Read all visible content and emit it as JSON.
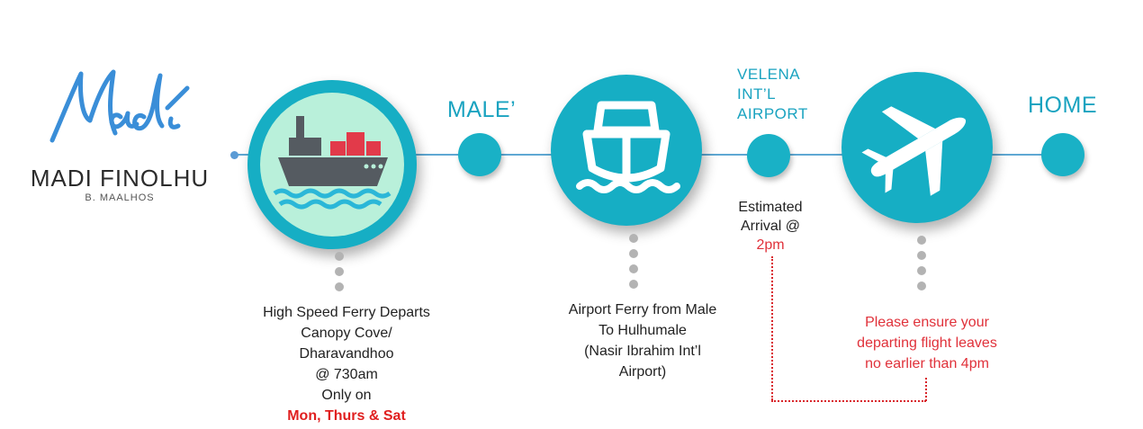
{
  "logo": {
    "script_text": "Madi",
    "name": "MADI FINOLHU",
    "subtitle": "B. MAALHOS"
  },
  "stops": {
    "male": "MALE’",
    "velena_line1": "VELENA",
    "velena_line2": "INT’L",
    "velena_line3": "AIRPORT",
    "home": "HOME"
  },
  "icons": {
    "ferry": "cargo-ship-icon",
    "airport_ferry": "boat-front-icon",
    "flight": "airplane-icon"
  },
  "steps": {
    "ferry": {
      "line1": "High Speed Ferry Departs",
      "line2": "Canopy Cove/",
      "line3": "Dharavandhoo",
      "line4": "@ 730am",
      "line5": "Only on",
      "days": "Mon, Thurs & Sat"
    },
    "airport_ferry": {
      "line1": "Airport Ferry from Male",
      "line2": "To Hulhumale",
      "line3": "(Nasir Ibrahim Int’l",
      "line4": "Airport)"
    },
    "arrival": {
      "line1": "Estimated",
      "line2": "Arrival @",
      "time": "2pm"
    },
    "flight": {
      "line1": "Please ensure your",
      "line2": "departing flight leaves",
      "line3": "no earlier than 4pm"
    }
  },
  "colors": {
    "teal": "#16aec4",
    "mint": "#b9f0da",
    "accent_red": "#e02020",
    "line_blue": "#5fa8d3"
  }
}
